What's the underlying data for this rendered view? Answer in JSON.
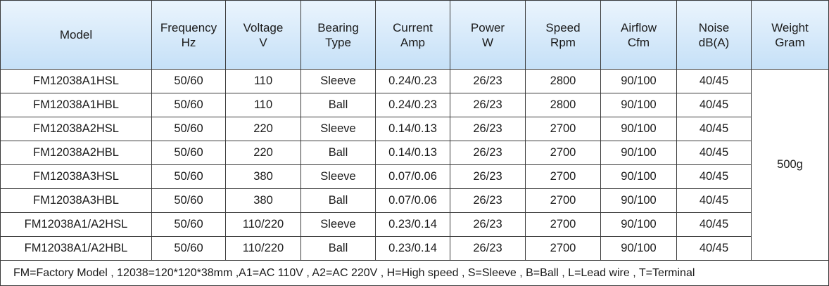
{
  "table": {
    "headers": [
      {
        "line1": "Model",
        "line2": ""
      },
      {
        "line1": "Frequency",
        "line2": "Hz"
      },
      {
        "line1": "Voltage",
        "line2": "V"
      },
      {
        "line1": "Bearing",
        "line2": "Type"
      },
      {
        "line1": "Current",
        "line2": "Amp"
      },
      {
        "line1": "Power",
        "line2": "W"
      },
      {
        "line1": "Speed",
        "line2": "Rpm"
      },
      {
        "line1": "Airflow",
        "line2": "Cfm"
      },
      {
        "line1": "Noise",
        "line2": "dB(A)"
      },
      {
        "line1": "Weight",
        "line2": "Gram"
      }
    ],
    "rows": [
      [
        "FM12038A1HSL",
        "50/60",
        "110",
        "Sleeve",
        "0.24/0.23",
        "26/23",
        "2800",
        "90/100",
        "40/45"
      ],
      [
        "FM12038A1HBL",
        "50/60",
        "110",
        "Ball",
        "0.24/0.23",
        "26/23",
        "2800",
        "90/100",
        "40/45"
      ],
      [
        "FM12038A2HSL",
        "50/60",
        "220",
        "Sleeve",
        "0.14/0.13",
        "26/23",
        "2700",
        "90/100",
        "40/45"
      ],
      [
        "FM12038A2HBL",
        "50/60",
        "220",
        "Ball",
        "0.14/0.13",
        "26/23",
        "2700",
        "90/100",
        "40/45"
      ],
      [
        "FM12038A3HSL",
        "50/60",
        "380",
        "Sleeve",
        "0.07/0.06",
        "26/23",
        "2700",
        "90/100",
        "40/45"
      ],
      [
        "FM12038A3HBL",
        "50/60",
        "380",
        "Ball",
        "0.07/0.06",
        "26/23",
        "2700",
        "90/100",
        "40/45"
      ],
      [
        "FM12038A1/A2HSL",
        "50/60",
        "110/220",
        "Sleeve",
        "0.23/0.14",
        "26/23",
        "2700",
        "90/100",
        "40/45"
      ],
      [
        "FM12038A1/A2HBL",
        "50/60",
        "110/220",
        "Ball",
        "0.23/0.14",
        "26/23",
        "2700",
        "90/100",
        "40/45"
      ]
    ],
    "weight": "500g",
    "footnote": "FM=Factory Model , 12038=120*120*38mm ,A1=AC 110V , A2=AC 220V , H=High speed , S=Sleeve , B=Ball , L=Lead wire , T=Terminal"
  },
  "colors": {
    "header_top": "#eaf4fd",
    "header_bottom": "#c5e0f7",
    "border": "#3a3a3a",
    "text": "#1a1a1a"
  }
}
